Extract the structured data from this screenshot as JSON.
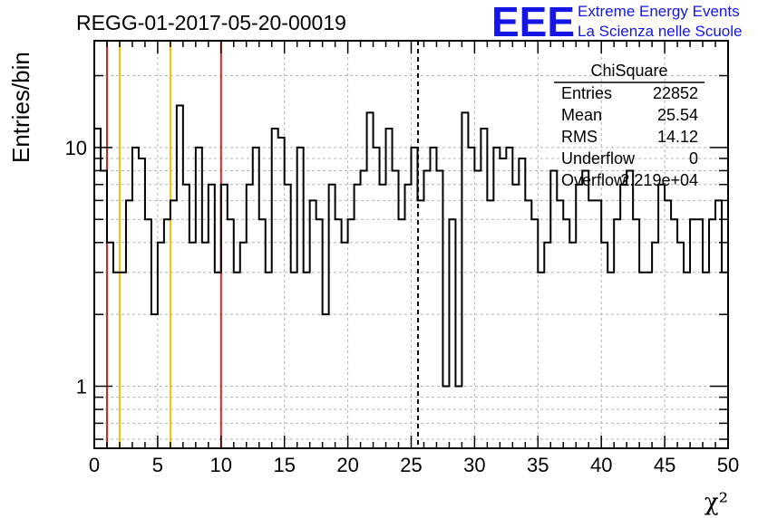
{
  "chart_data": {
    "type": "bar",
    "title": "REGG-01-2017-05-20-00019",
    "xlabel": "χ²",
    "ylabel": "Entries/bin",
    "xlim": [
      0,
      50
    ],
    "ylim": [
      0.55,
      28
    ],
    "yscale": "log",
    "grid": true,
    "bin_width": 0.5,
    "values": [
      12,
      8,
      4,
      3,
      3,
      6,
      10,
      9,
      5,
      2,
      4,
      5,
      6,
      15,
      7,
      4,
      10,
      4,
      7,
      3,
      7,
      5,
      3,
      4,
      7,
      10,
      5,
      3,
      12,
      11,
      7,
      3,
      10,
      3,
      6,
      5,
      2,
      7,
      5,
      4,
      5,
      7,
      8,
      14,
      10,
      7,
      12,
      8,
      5,
      7,
      10,
      6,
      8,
      10,
      8,
      1,
      5,
      1,
      14,
      10,
      8,
      12,
      6,
      10,
      9,
      10,
      7,
      9,
      6,
      5,
      3,
      4,
      8,
      6,
      5,
      4,
      7,
      8,
      6,
      6,
      4,
      3,
      5,
      7,
      8,
      5,
      3,
      3,
      4,
      7,
      6,
      5,
      4,
      3,
      5,
      5,
      3,
      5,
      6,
      3
    ],
    "x_ticks": [
      "0",
      "5",
      "10",
      "15",
      "20",
      "25",
      "30",
      "35",
      "40",
      "45",
      "50"
    ],
    "y_ticks": [
      "1",
      "10"
    ],
    "vertical_lines": [
      {
        "x": 1,
        "color": "#dd2222",
        "style": "solid"
      },
      {
        "x": 2,
        "color": "#f2c200",
        "style": "solid"
      },
      {
        "x": 6,
        "color": "#f2c200",
        "style": "solid"
      },
      {
        "x": 10,
        "color": "#dd2222",
        "style": "solid"
      },
      {
        "x": 25.54,
        "color": "#000000",
        "style": "dashed"
      }
    ],
    "stats_box": {
      "name": "ChiSquare",
      "rows": [
        {
          "label": "Entries",
          "value": "22852"
        },
        {
          "label": "Mean",
          "value": "25.54"
        },
        {
          "label": "RMS",
          "value": "14.12"
        },
        {
          "label": "Underflow",
          "value": "0"
        },
        {
          "label": "Overflow",
          "value": "2.219e+04"
        }
      ]
    }
  },
  "logo": {
    "mark": "EEE",
    "line1": "Extreme Energy Events",
    "line2": "La Scienza nelle Scuole",
    "color": "#1515e6"
  }
}
